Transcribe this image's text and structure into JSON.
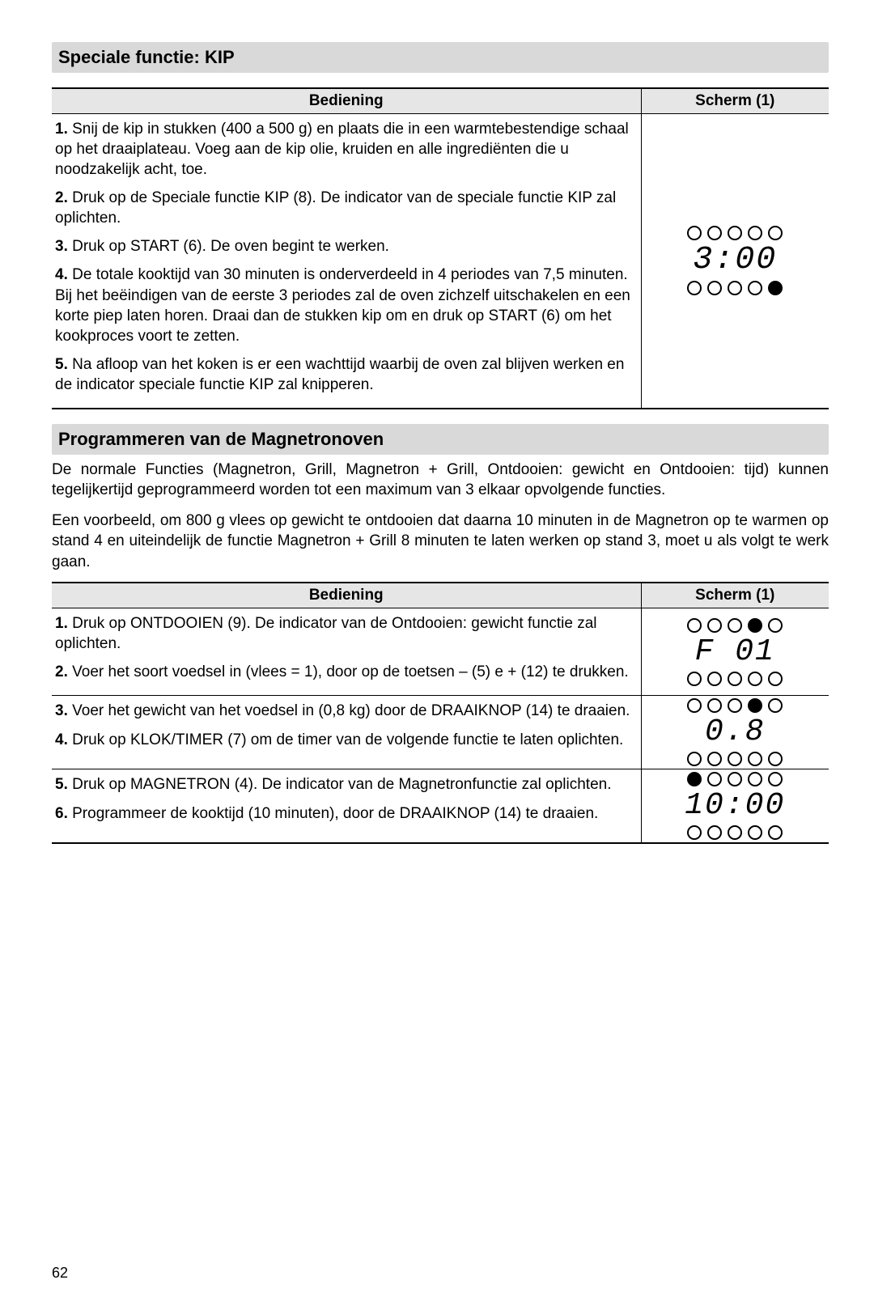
{
  "section1": {
    "title": "Speciale functie: KIP",
    "col_left": "Bediening",
    "col_right": "Scherm (1)",
    "steps": [
      "<b>1.</b> Snij de kip in stukken (400 a 500 g) en plaats die in een warmtebestendige schaal op het draaiplateau. Voeg aan de kip olie, kruiden en alle ingrediënten die u noodzakelijk acht, toe.",
      "<b>2.</b> Druk op de Speciale functie KIP (8). De indicator van de speciale functie KIP zal oplichten.",
      "<b>3.</b> Druk op  START (6). De oven begint te werken.",
      "<b>4.</b> De totale kooktijd van 30 minuten is onderverdeeld in 4 periodes van 7,5 minuten. Bij het beëindigen van de eerste 3 periodes zal de oven zichzelf uitschakelen en een korte piep laten horen. Draai dan de stukken kip om en druk op START (6) om het kookproces voort te zetten.",
      "<b>5.</b> Na afloop van het koken is er een wachttijd waarbij de oven zal blijven werken en de indicator speciale functie KIP zal knipperen."
    ],
    "display": {
      "top_leds": [
        0,
        0,
        0,
        0,
        0
      ],
      "value": "3:00",
      "bottom_leds": [
        0,
        0,
        0,
        0,
        1
      ]
    }
  },
  "section2": {
    "title": "Programmeren van de Magnetronoven",
    "intro1": "De normale Functies (Magnetron, Grill, Magnetron + Grill, Ontdooien: gewicht en Ontdooien: tijd) kunnen tegelijkertijd geprogrammeerd worden tot een maximum van 3 elkaar opvolgende functies.",
    "intro2": "Een voorbeeld, om 800 g vlees op gewicht te ontdooien dat daarna 10 minuten in de Magnetron op te warmen op stand 4 en uiteindelijk de functie Magnetron + Grill 8 minuten te laten werken op stand 3, moet u als volgt te werk gaan.",
    "col_left": "Bediening",
    "col_right": "Scherm (1)",
    "rows": [
      {
        "steps": [
          "<b>1.</b> Druk op ONTDOOIEN (9). De indicator van de Ontdooien: gewicht functie zal oplichten.",
          "<b>2.</b> Voer het soort voedsel in (vlees =  1), door op de toetsen  – (5) e + (12) te drukken."
        ],
        "display": {
          "top_leds": [
            0,
            0,
            0,
            1,
            0
          ],
          "value": "F  01",
          "bottom_leds": [
            0,
            0,
            0,
            0,
            0
          ]
        }
      },
      {
        "steps": [
          "<b>3.</b> Voer het gewicht van het voedsel in (0,8 kg) door de DRAAIKNOP (14) te draaien.",
          "<b>4.</b> Druk op KLOK/TIMER (7) om de timer van de volgende functie te laten oplichten."
        ],
        "display": {
          "top_leds": [
            0,
            0,
            0,
            1,
            0
          ],
          "value": "0.8",
          "bottom_leds": [
            0,
            0,
            0,
            0,
            0
          ]
        }
      },
      {
        "steps": [
          "<b>5.</b> Druk op MAGNETRON (4). De indicator van de Magnetronfunctie zal oplichten.",
          "<b>6.</b> Programmeer de kooktijd  (10 minuten), door de DRAAIKNOP (14) te draaien."
        ],
        "display": {
          "top_leds": [
            1,
            0,
            0,
            0,
            0
          ],
          "value": "10:00",
          "bottom_leds": [
            0,
            0,
            0,
            0,
            0
          ]
        }
      }
    ]
  },
  "page_number": "62"
}
